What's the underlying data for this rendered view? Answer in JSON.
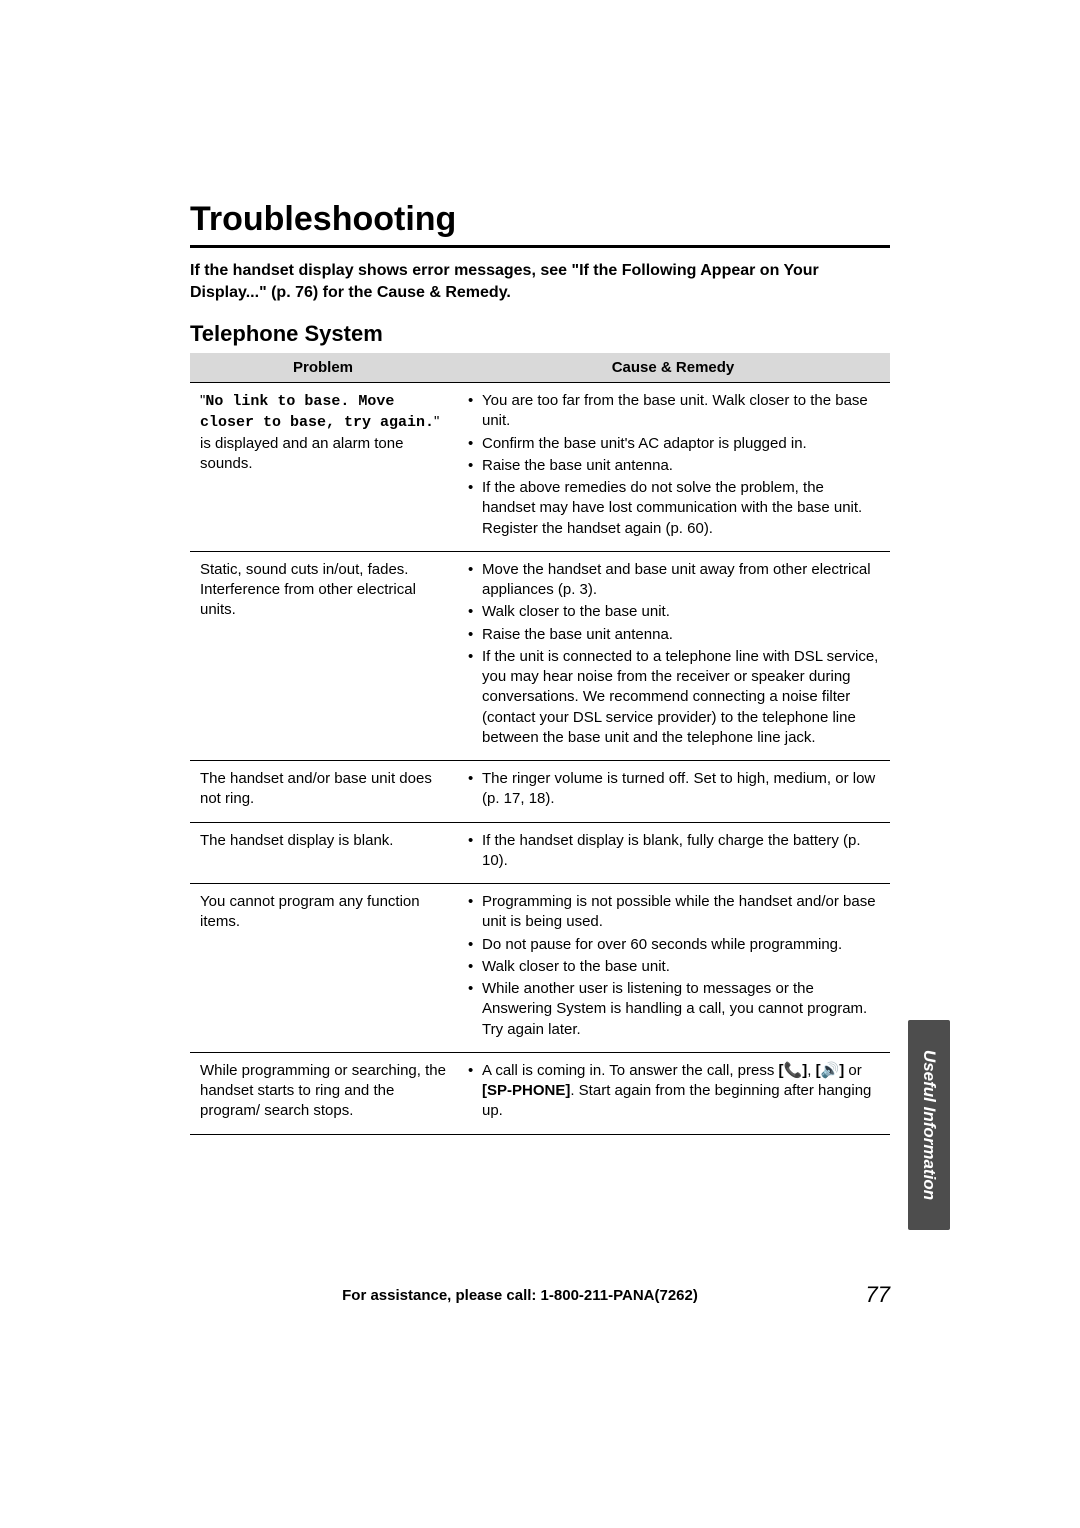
{
  "title": "Troubleshooting",
  "intro": "If the handset display shows error messages, see \"If the Following Appear on Your Display...\" (p. 76) for the Cause & Remedy.",
  "subtitle": "Telephone System",
  "table": {
    "headers": {
      "problem": "Problem",
      "remedy": "Cause & Remedy"
    },
    "rows": [
      {
        "problem_pre": "\"",
        "problem_mono": "No link to base. Move closer to base, try again.",
        "problem_post": "\" is displayed and an alarm tone sounds.",
        "remedies": [
          "You are too far from the base unit. Walk closer to the base unit.",
          "Confirm the base unit's AC adaptor is plugged in.",
          "Raise the base unit antenna.",
          "If the above remedies do not solve the problem, the handset may have lost communication with the base unit. Register the handset again (p. 60)."
        ]
      },
      {
        "problem": "Static, sound cuts in/out, fades. Interference from other electrical units.",
        "remedies": [
          "Move the handset and base unit away from other electrical appliances (p. 3).",
          "Walk closer to the base unit.",
          "Raise the base unit antenna.",
          "If the unit is connected to a telephone line with DSL service, you may hear noise from the receiver or speaker during conversations. We recommend connecting a noise filter (contact your DSL service provider) to the telephone line between the base unit and the telephone line jack."
        ]
      },
      {
        "problem": "The handset and/or base unit does not ring.",
        "remedies": [
          "The ringer volume is turned off. Set to high, medium, or low (p. 17, 18)."
        ]
      },
      {
        "problem": "The handset display is blank.",
        "remedies": [
          "If the handset display is blank, fully charge the battery (p. 10)."
        ]
      },
      {
        "problem": "You cannot program any function items.",
        "remedies": [
          "Programming is not possible while the handset and/or base unit is being used.",
          "Do not pause for over 60 seconds while programming.",
          "Walk closer to the base unit.",
          "While another user is listening to messages or the Answering System is handling a call, you cannot program. Try again later."
        ]
      },
      {
        "problem": "While programming or searching, the handset starts to ring and the program/ search stops.",
        "remedy_special": {
          "pre": "A call is coming in. To answer the call, press ",
          "btn1": "[",
          "icon1": "handset-icon",
          "btn1_close": "]",
          "sep1": ", ",
          "btn2": "[",
          "icon2": "speaker-icon",
          "btn2_close": "]",
          "sep2": " or ",
          "btn3": "[SP-PHONE]",
          "post": ". Start again from the beginning after hanging up."
        }
      }
    ]
  },
  "footer": {
    "assist": "For assistance, please call: 1-800-211-PANA(7262)",
    "page": "77"
  },
  "sidetab": "Useful Information",
  "icons": {
    "handset-icon": "📞",
    "speaker-icon": "🔊"
  }
}
